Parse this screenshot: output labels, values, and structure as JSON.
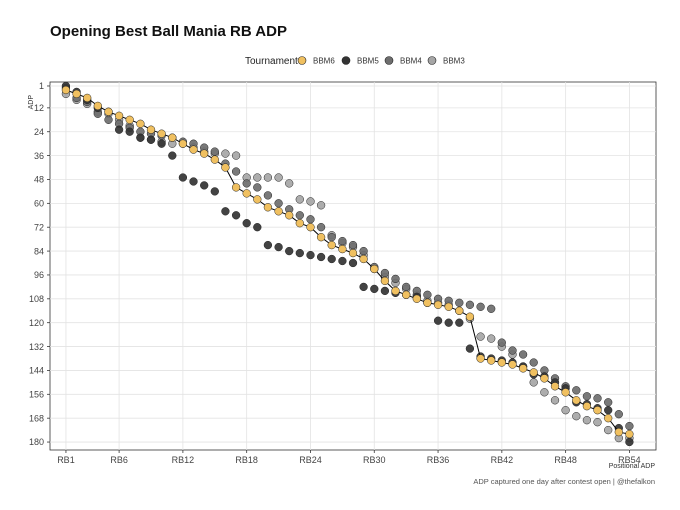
{
  "chart_data": {
    "type": "scatter",
    "title": "Opening Best Ball Mania RB ADP",
    "xlabel": "Positional ADP",
    "ylabel": "ADP",
    "caption": "ADP captured one day after contest open | @thefalkon",
    "legend": {
      "title": "Tournament",
      "position": "top",
      "entries": [
        "BBM6",
        "BBM5",
        "BBM4",
        "BBM3"
      ]
    },
    "x_ticks": [
      "RB1",
      "RB6",
      "RB12",
      "RB18",
      "RB24",
      "RB30",
      "RB36",
      "RB42",
      "RB48",
      "RB54"
    ],
    "x_tick_values": [
      1,
      6,
      12,
      18,
      24,
      30,
      36,
      42,
      48,
      54
    ],
    "y_ticks": [
      1,
      12,
      24,
      36,
      48,
      60,
      72,
      84,
      96,
      108,
      120,
      132,
      144,
      156,
      168,
      180
    ],
    "xlim": [
      -0.5,
      56.5
    ],
    "ylim": [
      184,
      -1
    ],
    "grid": true,
    "colors": {
      "BBM6": "#f0c060",
      "BBM5": "#333333",
      "BBM4": "#6e6e6e",
      "BBM3": "#a6a6a6",
      "line": "#000000"
    },
    "series": [
      {
        "name": "BBM3",
        "x": [
          1,
          2,
          3,
          4,
          5,
          6,
          7,
          8,
          9,
          10,
          11,
          12,
          13,
          14,
          15,
          16,
          17,
          18,
          19,
          20,
          21,
          22,
          23,
          24,
          25,
          26,
          27,
          28,
          29,
          30,
          31,
          32,
          33,
          34,
          35,
          36,
          37,
          38,
          39,
          40,
          41,
          42,
          43,
          44,
          45,
          46,
          47,
          48,
          49,
          50,
          51,
          52,
          53,
          54
        ],
        "y": [
          5,
          8,
          10,
          14,
          15,
          18,
          21,
          27,
          28,
          29,
          30,
          30,
          32,
          34,
          35,
          35,
          36,
          47,
          47,
          47,
          47,
          50,
          58,
          59,
          61,
          76,
          80,
          82,
          86,
          93,
          97,
          100,
          103,
          106,
          109,
          110,
          111,
          114,
          118,
          127,
          128,
          132,
          136,
          142,
          150,
          155,
          159,
          164,
          167,
          169,
          170,
          174,
          178,
          178
        ]
      },
      {
        "name": "BBM4",
        "x": [
          1,
          2,
          3,
          4,
          5,
          6,
          7,
          8,
          9,
          10,
          11,
          12,
          13,
          14,
          15,
          16,
          17,
          18,
          19,
          20,
          21,
          22,
          23,
          24,
          25,
          26,
          27,
          28,
          29,
          30,
          31,
          32,
          33,
          34,
          35,
          36,
          37,
          38,
          39,
          40,
          41,
          42,
          43,
          44,
          45,
          46,
          47,
          48,
          49,
          50,
          51,
          52,
          53,
          54
        ],
        "y": [
          2,
          7,
          9,
          15,
          18,
          20,
          22,
          24,
          25,
          26,
          27,
          29,
          30,
          32,
          34,
          40,
          44,
          50,
          52,
          56,
          60,
          63,
          66,
          68,
          72,
          77,
          79,
          81,
          84,
          92,
          95,
          98,
          102,
          104,
          106,
          108,
          109,
          110,
          111,
          112,
          113,
          130,
          134,
          136,
          140,
          144,
          148,
          152,
          154,
          157,
          158,
          160,
          166,
          172
        ]
      },
      {
        "name": "BBM5",
        "x": [
          1,
          2,
          3,
          4,
          5,
          6,
          7,
          8,
          9,
          10,
          11,
          12,
          13,
          14,
          15,
          16,
          17,
          18,
          19,
          20,
          21,
          22,
          23,
          24,
          25,
          26,
          27,
          28,
          29,
          30,
          31,
          32,
          33,
          34,
          35,
          36,
          37,
          38,
          39,
          40,
          41,
          42,
          43,
          44,
          45,
          46,
          47,
          48,
          49,
          50,
          51,
          52,
          53,
          54
        ],
        "y": [
          1,
          4,
          8,
          12,
          14,
          23,
          24,
          27,
          28,
          30,
          36,
          47,
          49,
          51,
          54,
          64,
          66,
          70,
          72,
          81,
          82,
          84,
          85,
          86,
          87,
          88,
          89,
          90,
          102,
          103,
          104,
          105,
          106,
          107,
          110,
          119,
          120,
          120,
          133,
          137,
          138,
          139,
          140,
          142,
          146,
          147,
          150,
          153,
          160,
          161,
          163,
          164,
          173,
          180
        ]
      },
      {
        "name": "BBM6",
        "x": [
          1,
          2,
          3,
          4,
          5,
          6,
          7,
          8,
          9,
          10,
          11,
          12,
          13,
          14,
          15,
          16,
          17,
          18,
          19,
          20,
          21,
          22,
          23,
          24,
          25,
          26,
          27,
          28,
          29,
          30,
          31,
          32,
          33,
          34,
          35,
          36,
          37,
          38,
          39,
          40,
          41,
          42,
          43,
          44,
          45,
          46,
          47,
          48,
          49,
          50,
          51,
          52,
          53,
          54
        ],
        "y": [
          3,
          5,
          7,
          11,
          14,
          16,
          18,
          20,
          23,
          25,
          27,
          30,
          33,
          35,
          38,
          42,
          52,
          55,
          58,
          62,
          64,
          66,
          70,
          72,
          77,
          81,
          83,
          85,
          88,
          93,
          99,
          104,
          106,
          108,
          110,
          111,
          112,
          114,
          117,
          138,
          139,
          140,
          141,
          143,
          145,
          148,
          152,
          155,
          159,
          162,
          164,
          168,
          175,
          176
        ]
      }
    ]
  }
}
